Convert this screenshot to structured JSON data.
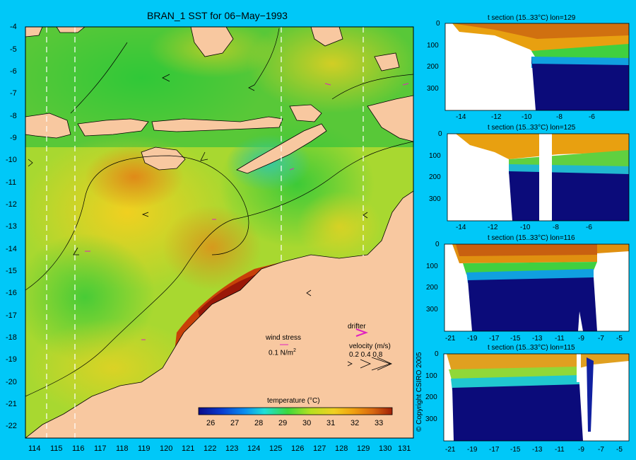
{
  "map": {
    "title": "BRAN_1 SST for 06−May−1993",
    "lon_ticks": [
      "114",
      "115",
      "116",
      "117",
      "118",
      "119",
      "120",
      "121",
      "122",
      "123",
      "124",
      "125",
      "126",
      "127",
      "128",
      "129",
      "130",
      "131"
    ],
    "lat_ticks": [
      "-4",
      "-5",
      "-6",
      "-7",
      "-8",
      "-9",
      "-10",
      "-11",
      "-12",
      "-13",
      "-14",
      "-15",
      "-16",
      "-17",
      "-18",
      "-19",
      "-20",
      "-21",
      "-22"
    ],
    "colorbar": {
      "label": "temperature (°C)",
      "ticks": [
        "26",
        "27",
        "28",
        "29",
        "30",
        "31",
        "32",
        "33"
      ],
      "colors": [
        "#0b0b8a",
        "#0a3cd0",
        "#0a8ff0",
        "#1ee0d8",
        "#3cd83c",
        "#b8e020",
        "#f0d020",
        "#f0a010",
        "#d86810",
        "#a02008"
      ]
    },
    "legend": {
      "wind_stress": "wind stress",
      "wind_scale": "0.1 N/m",
      "wind_scale_sup": "2",
      "drifter": "drifter",
      "velocity": "velocity (m/s)",
      "velocity_values": "0.2 0.4 0.8"
    }
  },
  "sections": [
    {
      "title": "t section (15..33°C) lon=129",
      "depth_ticks": [
        "0",
        "100",
        "200",
        "300"
      ],
      "x_ticks": [
        "-14",
        "-12",
        "-10",
        "-8",
        "-6"
      ]
    },
    {
      "title": "t section (15..33°C) lon=125",
      "depth_ticks": [
        "0",
        "100",
        "200",
        "300"
      ],
      "x_ticks": [
        "-14",
        "-12",
        "-10",
        "-8",
        "-6"
      ]
    },
    {
      "title": "t section (15..33°C) lon=116",
      "depth_ticks": [
        "0",
        "100",
        "200",
        "300"
      ],
      "x_ticks": [
        "-21",
        "-19",
        "-17",
        "-15",
        "-13",
        "-11",
        "-9",
        "-7",
        "-5"
      ]
    },
    {
      "title": "t section (15..33°C) lon=115",
      "depth_ticks": [
        "0",
        "100",
        "200",
        "300"
      ],
      "x_ticks": [
        "-21",
        "-19",
        "-17",
        "-15",
        "-13",
        "-11",
        "-9",
        "-7",
        "-5"
      ]
    }
  ],
  "copyright": "© Copyright CSIRO 2005"
}
